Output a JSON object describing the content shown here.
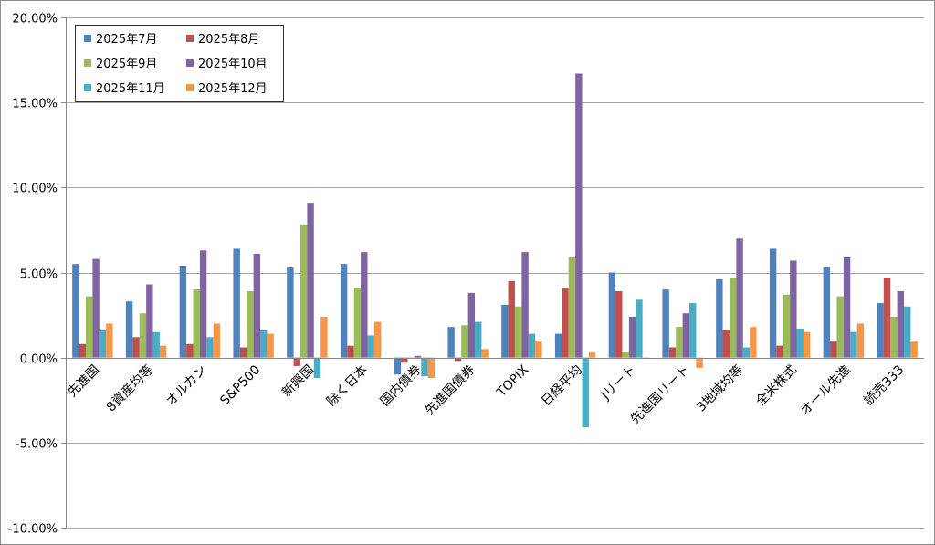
{
  "chart_data": {
    "type": "bar",
    "title": "",
    "xlabel": "",
    "ylabel": "",
    "ylim": [
      -0.1,
      0.2
    ],
    "y_ticks": [
      "20.00%",
      "15.00%",
      "10.00%",
      "5.00%",
      "0.00%",
      "-5.00%",
      "-10.00%"
    ],
    "y_tick_values": [
      0.2,
      0.15,
      0.1,
      0.05,
      0.0,
      -0.05,
      -0.1
    ],
    "grid": true,
    "legend_position": "top-left",
    "categories": [
      "先進国",
      "8資産均等",
      "オルカン",
      "S&P500",
      "新興国",
      "除く日本",
      "国内債券",
      "先進国債券",
      "TOPIX",
      "日経平均",
      "Jリート",
      "先進国リート",
      "3地域均等",
      "全米株式",
      "オール先進",
      "読売333"
    ],
    "series": [
      {
        "name": "2025年7月",
        "color": "#4F81BD",
        "values": [
          0.055,
          0.033,
          0.054,
          0.064,
          0.053,
          0.055,
          -0.01,
          0.018,
          0.031,
          0.014,
          0.05,
          0.04,
          0.046,
          0.064,
          0.053,
          0.032
        ]
      },
      {
        "name": "2025年8月",
        "color": "#C0504D",
        "values": [
          0.008,
          0.012,
          0.008,
          0.006,
          -0.005,
          0.007,
          -0.003,
          -0.002,
          0.045,
          0.041,
          0.039,
          0.006,
          0.016,
          0.007,
          0.01,
          0.047
        ]
      },
      {
        "name": "2025年9月",
        "color": "#9BBB59",
        "values": [
          0.036,
          0.026,
          0.04,
          0.039,
          0.078,
          0.041,
          0.0,
          0.019,
          0.03,
          0.059,
          0.003,
          0.018,
          0.047,
          0.037,
          0.036,
          0.024
        ]
      },
      {
        "name": "2025年10月",
        "color": "#8064A2",
        "values": [
          0.058,
          0.043,
          0.063,
          0.061,
          0.091,
          0.062,
          0.001,
          0.038,
          0.062,
          0.167,
          0.024,
          0.026,
          0.07,
          0.057,
          0.059,
          0.039
        ]
      },
      {
        "name": "2025年11月",
        "color": "#4BACC6",
        "values": [
          0.016,
          0.015,
          0.012,
          0.016,
          -0.012,
          0.013,
          -0.011,
          0.021,
          0.014,
          -0.041,
          0.034,
          0.032,
          0.006,
          0.017,
          0.015,
          0.03
        ]
      },
      {
        "name": "2025年12月",
        "color": "#F79646",
        "values": [
          0.02,
          0.007,
          0.02,
          0.014,
          0.024,
          0.021,
          -0.012,
          0.005,
          0.01,
          0.003,
          0.0,
          -0.006,
          0.018,
          0.015,
          0.02,
          0.01
        ]
      }
    ]
  }
}
